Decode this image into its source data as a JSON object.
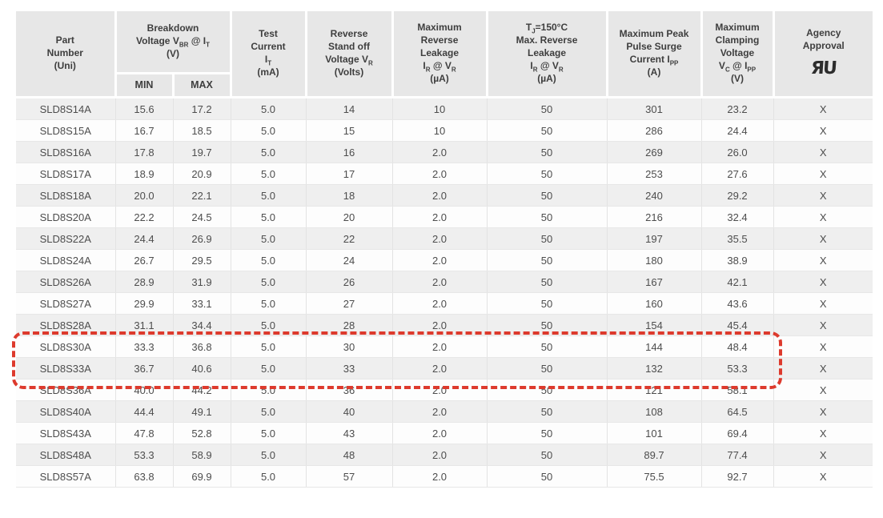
{
  "page": {
    "background": "#ffffff"
  },
  "colors": {
    "header_bg": "#e7e7e7",
    "row_stripe": "#efefef",
    "row_plain": "#fdfdfd",
    "text": "#4d4d4d",
    "highlight_box_red": "#dd3a2d"
  },
  "table": {
    "headers": {
      "part_number": "Part\nNumber\n(Uni)",
      "breakdown_voltage": "Breakdown\nVoltage V~BR~ @ I~T~\n(V)",
      "min": "MIN",
      "max": "MAX",
      "test_current": "Test\nCurrent\nI~T~\n(mA)",
      "reverse_standoff": "Reverse\nStand off\nVoltage V~R~\n(Volts)",
      "max_reverse_leakage": "Maximum\nReverse\nLeakage\nI~R~ @ V~R~\n(µA)",
      "tj_max_reverse_leakage": "T~J~=150°C\nMax. Reverse\nLeakage\nI~R~ @ V~R~\n(µA)",
      "peak_pulse_surge": "Maximum Peak\nPulse Surge\nCurrent I~PP~\n(A)",
      "max_clamping_voltage": "Maximum\nClamping\nVoltage\nV~C~ @ I~PP~\n(V)",
      "agency_approval": "Agency\nApproval",
      "agency_logo_icon": "ul-recognized-component-mark",
      "agency_logo_glyph": "ЯU"
    },
    "column_keys": [
      "part-number",
      "breakdown-min",
      "breakdown-max",
      "test-current",
      "reverse-standoff",
      "max-reverse-leakage",
      "tj150-max-reverse-leakage",
      "peak-pulse-surge-current",
      "max-clamping-voltage",
      "agency-approval"
    ],
    "rows": [
      [
        "SLD8S14A",
        "15.6",
        "17.2",
        "5.0",
        "14",
        "10",
        "50",
        "301",
        "23.2",
        "X"
      ],
      [
        "SLD8S15A",
        "16.7",
        "18.5",
        "5.0",
        "15",
        "10",
        "50",
        "286",
        "24.4",
        "X"
      ],
      [
        "SLD8S16A",
        "17.8",
        "19.7",
        "5.0",
        "16",
        "2.0",
        "50",
        "269",
        "26.0",
        "X"
      ],
      [
        "SLD8S17A",
        "18.9",
        "20.9",
        "5.0",
        "17",
        "2.0",
        "50",
        "253",
        "27.6",
        "X"
      ],
      [
        "SLD8S18A",
        "20.0",
        "22.1",
        "5.0",
        "18",
        "2.0",
        "50",
        "240",
        "29.2",
        "X"
      ],
      [
        "SLD8S20A",
        "22.2",
        "24.5",
        "5.0",
        "20",
        "2.0",
        "50",
        "216",
        "32.4",
        "X"
      ],
      [
        "SLD8S22A",
        "24.4",
        "26.9",
        "5.0",
        "22",
        "2.0",
        "50",
        "197",
        "35.5",
        "X"
      ],
      [
        "SLD8S24A",
        "26.7",
        "29.5",
        "5.0",
        "24",
        "2.0",
        "50",
        "180",
        "38.9",
        "X"
      ],
      [
        "SLD8S26A",
        "28.9",
        "31.9",
        "5.0",
        "26",
        "2.0",
        "50",
        "167",
        "42.1",
        "X"
      ],
      [
        "SLD8S27A",
        "29.9",
        "33.1",
        "5.0",
        "27",
        "2.0",
        "50",
        "160",
        "43.6",
        "X"
      ],
      [
        "SLD8S28A",
        "31.1",
        "34.4",
        "5.0",
        "28",
        "2.0",
        "50",
        "154",
        "45.4",
        "X"
      ],
      [
        "SLD8S30A",
        "33.3",
        "36.8",
        "5.0",
        "30",
        "2.0",
        "50",
        "144",
        "48.4",
        "X"
      ],
      [
        "SLD8S33A",
        "36.7",
        "40.6",
        "5.0",
        "33",
        "2.0",
        "50",
        "132",
        "53.3",
        "X"
      ],
      [
        "SLD8S36A",
        "40.0",
        "44.2",
        "5.0",
        "36",
        "2.0",
        "50",
        "121",
        "58.1",
        "X"
      ],
      [
        "SLD8S40A",
        "44.4",
        "49.1",
        "5.0",
        "40",
        "2.0",
        "50",
        "108",
        "64.5",
        "X"
      ],
      [
        "SLD8S43A",
        "47.8",
        "52.8",
        "5.0",
        "43",
        "2.0",
        "50",
        "101",
        "69.4",
        "X"
      ],
      [
        "SLD8S48A",
        "53.3",
        "58.9",
        "5.0",
        "48",
        "2.0",
        "50",
        "89.7",
        "77.4",
        "X"
      ],
      [
        "SLD8S57A",
        "63.8",
        "69.9",
        "5.0",
        "57",
        "2.0",
        "50",
        "75.5",
        "92.7",
        "X"
      ]
    ],
    "highlighted_rows": [
      "SLD8S30A",
      "SLD8S33A"
    ]
  }
}
